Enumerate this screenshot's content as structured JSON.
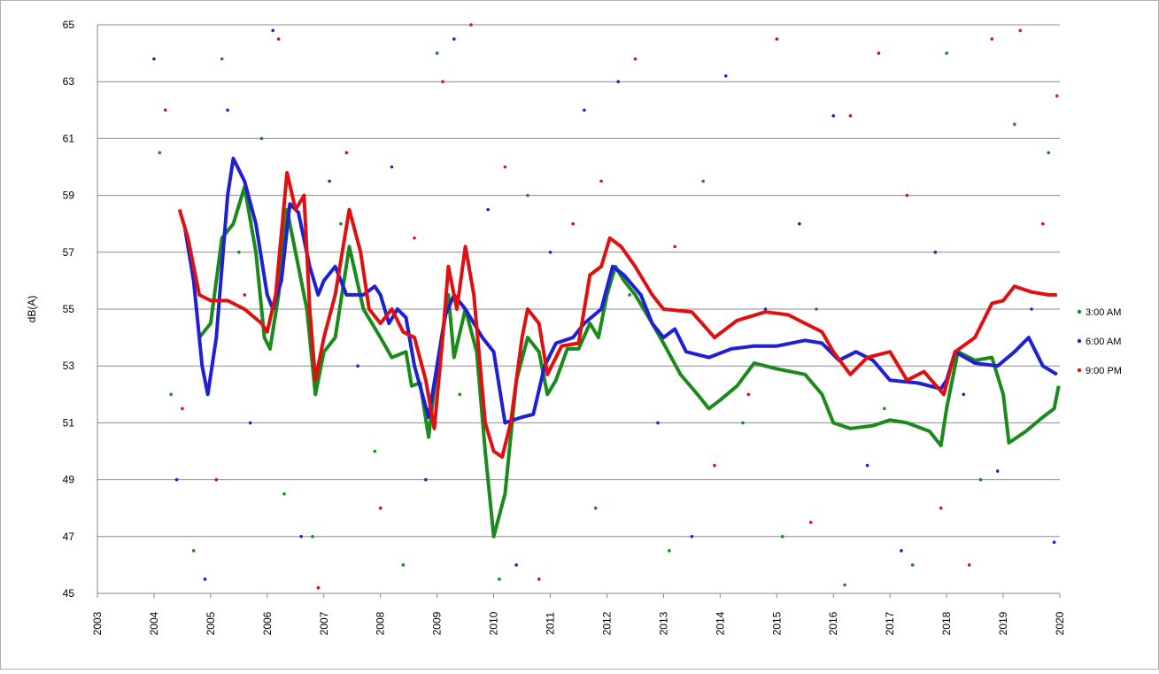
{
  "chart_data": {
    "type": "line",
    "y_label": "dB(A)",
    "xlim": [
      2003,
      2020
    ],
    "xticks": [
      2003,
      2004,
      2005,
      2006,
      2007,
      2008,
      2009,
      2010,
      2011,
      2012,
      2013,
      2014,
      2015,
      2016,
      2017,
      2018,
      2019,
      2020
    ],
    "ylim": [
      45,
      65
    ],
    "yticks": [
      45,
      47,
      49,
      51,
      53,
      55,
      57,
      59,
      61,
      63,
      65
    ],
    "grid": true,
    "legend": "right",
    "series": [
      {
        "name": "3:00 AM",
        "color": "#1a8a1a",
        "x": [
          2004.8,
          2005.0,
          2005.2,
          2005.4,
          2005.6,
          2005.8,
          2005.95,
          2006.05,
          2006.2,
          2006.35,
          2006.5,
          2006.7,
          2006.85,
          2007.0,
          2007.2,
          2007.45,
          2007.7,
          2008.0,
          2008.2,
          2008.45,
          2008.55,
          2008.7,
          2008.85,
          2009.0,
          2009.2,
          2009.3,
          2009.5,
          2009.7,
          2009.85,
          2010.0,
          2010.2,
          2010.4,
          2010.6,
          2010.8,
          2010.95,
          2011.1,
          2011.3,
          2011.5,
          2011.7,
          2011.85,
          2012.0,
          2012.15,
          2012.3,
          2012.5,
          2012.8,
          2013.0,
          2013.3,
          2013.6,
          2013.8,
          2014.0,
          2014.3,
          2014.6,
          2015.0,
          2015.5,
          2015.8,
          2016.0,
          2016.3,
          2016.7,
          2017.0,
          2017.3,
          2017.7,
          2017.9,
          2018.0,
          2018.2,
          2018.5,
          2018.8,
          2019.0,
          2019.1,
          2019.4,
          2019.7,
          2019.9,
          2019.98
        ],
        "values": [
          54,
          54.5,
          57.5,
          58,
          59.3,
          57,
          54,
          53.6,
          55.5,
          58.5,
          57,
          55,
          52,
          53.5,
          54,
          57.2,
          55,
          54,
          53.3,
          53.5,
          52.3,
          52.4,
          50.5,
          53,
          55.5,
          53.3,
          55,
          53.5,
          50,
          47,
          48.5,
          52.5,
          54,
          53.5,
          52,
          52.5,
          53.6,
          53.6,
          54.5,
          54,
          55.5,
          56.5,
          56,
          55.5,
          54.5,
          53.8,
          52.7,
          52,
          51.5,
          51.8,
          52.3,
          53.1,
          52.9,
          52.7,
          52,
          51,
          50.8,
          50.9,
          51.1,
          51,
          50.7,
          50.2,
          51.5,
          53.5,
          53.2,
          53.3,
          52,
          50.3,
          50.7,
          51.2,
          51.5,
          52.3
        ],
        "points_x": [
          2004.1,
          2004.3,
          2004.7,
          2005.2,
          2005.5,
          2005.9,
          2006.3,
          2006.8,
          2007.3,
          2007.9,
          2008.4,
          2009.0,
          2009.4,
          2010.1,
          2010.6,
          2011.2,
          2011.8,
          2012.4,
          2013.1,
          2013.7,
          2014.4,
          2015.1,
          2015.7,
          2016.2,
          2016.9,
          2017.4,
          2018.0,
          2018.6,
          2019.2,
          2019.8
        ],
        "points": [
          60.5,
          52,
          46.5,
          63.8,
          57,
          61,
          48.5,
          47,
          58,
          50,
          46,
          64,
          52,
          45.5,
          59,
          53,
          48,
          55.5,
          46.5,
          59.5,
          51,
          47,
          55,
          45.3,
          51.5,
          46,
          64,
          49,
          61.5,
          60.5
        ]
      },
      {
        "name": "6:00 AM",
        "color": "#1f1fd6",
        "x": [
          2004.55,
          2004.7,
          2004.85,
          2004.95,
          2005.1,
          2005.3,
          2005.4,
          2005.6,
          2005.8,
          2006.0,
          2006.1,
          2006.25,
          2006.4,
          2006.55,
          2006.75,
          2006.9,
          2007.0,
          2007.2,
          2007.4,
          2007.7,
          2007.9,
          2008.0,
          2008.15,
          2008.3,
          2008.45,
          2008.6,
          2008.85,
          2009.0,
          2009.15,
          2009.3,
          2009.5,
          2009.8,
          2010.0,
          2010.2,
          2010.5,
          2010.7,
          2010.9,
          2011.1,
          2011.4,
          2011.6,
          2011.9,
          2012.1,
          2012.3,
          2012.6,
          2012.8,
          2013.0,
          2013.2,
          2013.4,
          2013.8,
          2014.2,
          2014.6,
          2015.0,
          2015.5,
          2015.8,
          2016.1,
          2016.4,
          2016.7,
          2017.0,
          2017.5,
          2017.9,
          2018.0,
          2018.15,
          2018.5,
          2018.9,
          2019.2,
          2019.45,
          2019.7,
          2019.95
        ],
        "values": [
          57.8,
          56,
          53,
          52,
          54,
          59,
          60.3,
          59.5,
          58,
          55.5,
          55,
          56,
          58.7,
          58.4,
          56.5,
          55.5,
          56,
          56.5,
          55.5,
          55.5,
          55.8,
          55.5,
          54.5,
          55,
          54.7,
          53,
          51.2,
          53,
          54.8,
          55.5,
          55,
          54,
          53.5,
          51,
          51.2,
          51.3,
          53,
          53.8,
          54,
          54.5,
          55,
          56.5,
          56.2,
          55.5,
          54.5,
          54,
          54.3,
          53.5,
          53.3,
          53.6,
          53.7,
          53.7,
          53.9,
          53.8,
          53.2,
          53.5,
          53.2,
          52.5,
          52.4,
          52.2,
          52.5,
          53.5,
          53.1,
          53,
          53.5,
          54,
          53,
          52.7
        ],
        "points_x": [
          2004.0,
          2004.4,
          2004.9,
          2005.3,
          2005.7,
          2006.1,
          2006.6,
          2007.1,
          2007.6,
          2008.2,
          2008.8,
          2009.3,
          2009.9,
          2010.4,
          2011.0,
          2011.6,
          2012.2,
          2012.9,
          2013.5,
          2014.1,
          2014.8,
          2015.4,
          2016.0,
          2016.6,
          2017.2,
          2017.8,
          2018.3,
          2018.9,
          2019.5,
          2019.9
        ],
        "points": [
          63.8,
          49,
          45.5,
          62,
          51,
          64.8,
          47,
          59.5,
          53,
          60,
          49,
          64.5,
          58.5,
          46,
          57,
          62,
          63,
          51,
          47,
          63.2,
          55,
          58,
          61.8,
          49.5,
          46.5,
          57,
          52,
          49.3,
          55,
          46.8
        ]
      },
      {
        "name": "9:00 PM",
        "color": "#e01010",
        "x": [
          2004.45,
          2004.6,
          2004.8,
          2005.0,
          2005.3,
          2005.6,
          2005.9,
          2006.0,
          2006.15,
          2006.35,
          2006.5,
          2006.65,
          2006.75,
          2006.85,
          2007.0,
          2007.2,
          2007.45,
          2007.65,
          2007.8,
          2008.0,
          2008.2,
          2008.4,
          2008.6,
          2008.8,
          2008.95,
          2009.1,
          2009.2,
          2009.35,
          2009.5,
          2009.65,
          2009.85,
          2010.0,
          2010.15,
          2010.3,
          2010.5,
          2010.6,
          2010.8,
          2010.95,
          2011.2,
          2011.5,
          2011.7,
          2011.9,
          2012.05,
          2012.25,
          2012.5,
          2012.8,
          2013.0,
          2013.5,
          2013.9,
          2014.3,
          2014.8,
          2015.2,
          2015.5,
          2015.8,
          2016.0,
          2016.3,
          2016.6,
          2017.0,
          2017.3,
          2017.6,
          2017.95,
          2018.15,
          2018.5,
          2018.8,
          2019.0,
          2019.2,
          2019.5,
          2019.8,
          2019.95
        ],
        "values": [
          58.5,
          57.5,
          55.5,
          55.3,
          55.3,
          55,
          54.5,
          54.2,
          55.5,
          59.8,
          58.5,
          59,
          55,
          52.5,
          54,
          55.5,
          58.5,
          57,
          55,
          54.5,
          55,
          54.2,
          54,
          52.5,
          50.8,
          54,
          56.5,
          55,
          57.2,
          55.5,
          51,
          50,
          49.8,
          51,
          54,
          55,
          54.5,
          52.7,
          53.7,
          53.8,
          56.2,
          56.5,
          57.5,
          57.2,
          56.5,
          55.5,
          55,
          54.9,
          54,
          54.6,
          54.9,
          54.8,
          54.5,
          54.2,
          53.5,
          52.7,
          53.3,
          53.5,
          52.5,
          52.8,
          52,
          53.5,
          54,
          55.2,
          55.3,
          55.8,
          55.6,
          55.5,
          55.5
        ],
        "points_x": [
          2004.2,
          2004.5,
          2005.1,
          2005.6,
          2006.2,
          2006.9,
          2007.4,
          2008.0,
          2008.6,
          2009.1,
          2009.6,
          2010.2,
          2010.8,
          2011.4,
          2011.9,
          2012.5,
          2013.2,
          2013.9,
          2014.5,
          2015.0,
          2015.6,
          2016.3,
          2016.8,
          2017.3,
          2017.9,
          2018.4,
          2018.8,
          2019.3,
          2019.7,
          2019.95
        ],
        "points": [
          62,
          51.5,
          49,
          55.5,
          64.5,
          45.2,
          60.5,
          48,
          57.5,
          63,
          65,
          60,
          45.5,
          58,
          59.5,
          63.8,
          57.2,
          49.5,
          52,
          64.5,
          47.5,
          61.8,
          64,
          59,
          48,
          46,
          64.5,
          64.8,
          58,
          62.5
        ]
      }
    ]
  }
}
